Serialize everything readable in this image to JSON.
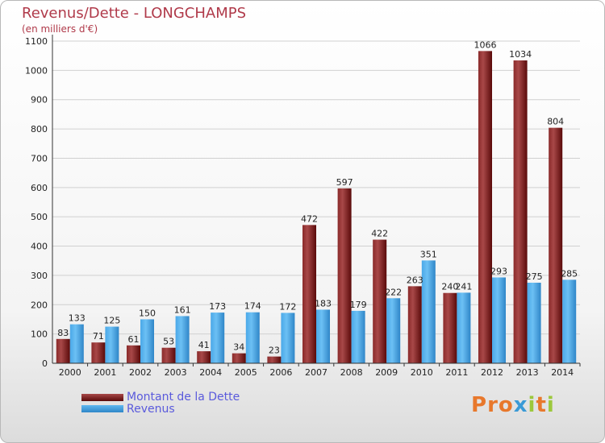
{
  "header": {
    "title": "Revenus/Dette - LONGCHAMPS",
    "subtitle": "(en milliers d'€)"
  },
  "legend": {
    "debt_label": "Montant de la Dette",
    "revenue_label": "Revenus"
  },
  "logo": {
    "text": "Proxiti"
  },
  "colors": {
    "debt": "#6e1414",
    "revenue": "#3a9ae0",
    "title": "#b03a4a",
    "legend_text": "#5a5adc"
  },
  "chart_data": {
    "type": "bar",
    "title": "Revenus/Dette - LONGCHAMPS",
    "ylabel": "(en milliers d'€)",
    "xlabel": "",
    "categories": [
      "2000",
      "2001",
      "2002",
      "2003",
      "2004",
      "2005",
      "2006",
      "2007",
      "2008",
      "2009",
      "2010",
      "2011",
      "2012",
      "2013",
      "2014"
    ],
    "series": [
      {
        "name": "Montant de la Dette",
        "values": [
          83,
          71,
          61,
          53,
          41,
          34,
          23,
          472,
          597,
          422,
          263,
          240,
          1066,
          1034,
          804
        ]
      },
      {
        "name": "Revenus",
        "values": [
          133,
          125,
          150,
          161,
          173,
          174,
          172,
          183,
          179,
          222,
          351,
          241,
          293,
          275,
          285
        ]
      }
    ],
    "ylim": [
      0,
      1100
    ],
    "yticks": [
      0,
      100,
      200,
      300,
      400,
      500,
      600,
      700,
      800,
      900,
      1000,
      1100
    ],
    "grid": true,
    "legend_position": "bottom-left"
  }
}
